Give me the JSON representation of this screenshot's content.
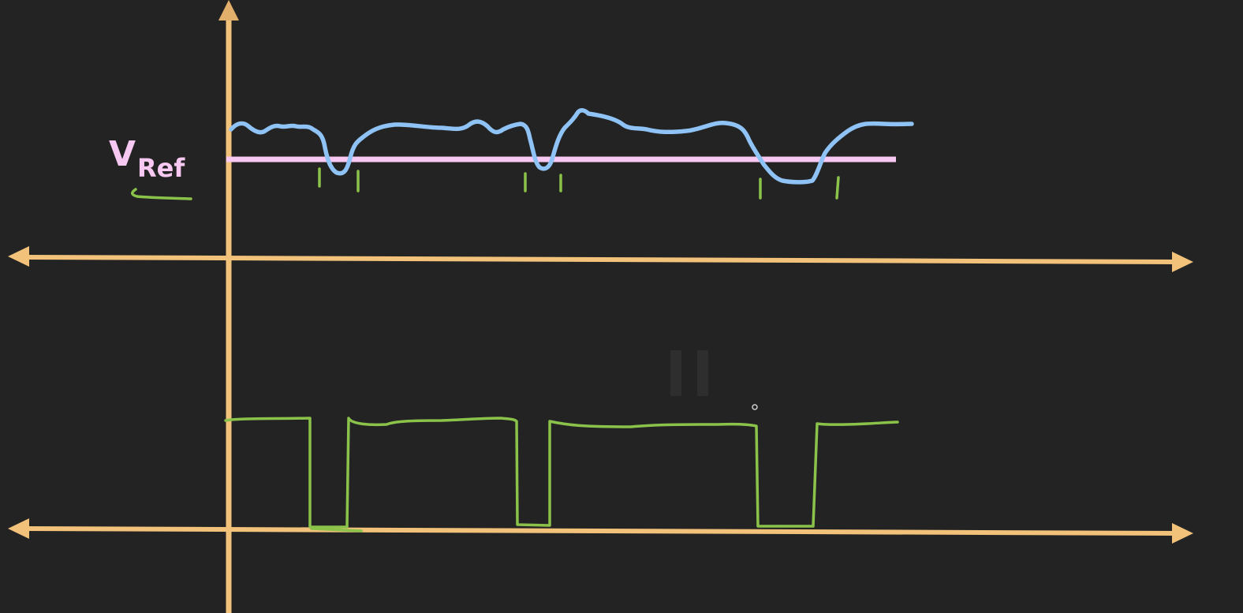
{
  "diagram": {
    "label": {
      "v": "V",
      "sub": "Ref"
    },
    "colors": {
      "background": "#232323",
      "axis": "#f2c27a",
      "input_signal": "#8fc3f5",
      "reference_line": "#f7c8f2",
      "output_signal": "#8bc34a",
      "crossing_marks": "#8bc34a",
      "label": "#f7c8f2"
    },
    "overlay": {
      "icon": "pause-icon"
    }
  }
}
